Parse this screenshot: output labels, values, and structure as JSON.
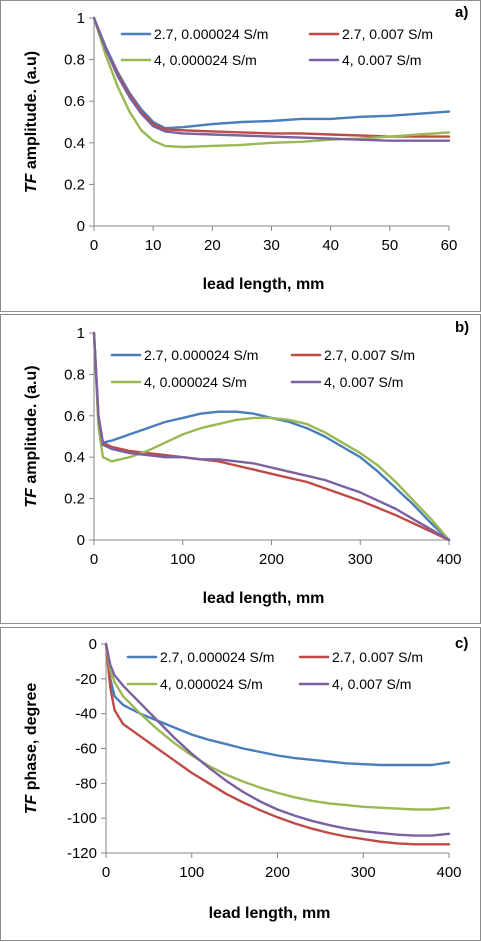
{
  "chart_data": [
    {
      "type": "line",
      "panel_label": "a)",
      "xlabel": "lead length, mm",
      "ylabel_italic": "TF",
      "ylabel_rest": " amplitude. (a.u)",
      "xlim": [
        0,
        60
      ],
      "ylim": [
        0,
        1
      ],
      "xticks": [
        0,
        10,
        20,
        30,
        40,
        50,
        60
      ],
      "yticks": [
        0,
        0.2,
        0.4,
        0.6,
        0.8,
        1
      ],
      "ytick_labels": [
        "0",
        "0.2",
        "0.4",
        "0.6",
        "0.8",
        "1"
      ],
      "legend_columns": 2,
      "legend_position": "top-right",
      "series": [
        {
          "name": "2.7, 0.000024 S/m",
          "color": "#4a7ebb",
          "x": [
            0,
            2,
            4,
            6,
            8,
            10,
            12,
            15,
            20,
            25,
            30,
            35,
            40,
            45,
            50,
            55,
            60
          ],
          "y": [
            1,
            0.86,
            0.74,
            0.64,
            0.56,
            0.5,
            0.47,
            0.475,
            0.49,
            0.5,
            0.505,
            0.515,
            0.515,
            0.525,
            0.53,
            0.54,
            0.55
          ]
        },
        {
          "name": "2.7, 0.007 S/m",
          "color": "#be4b48",
          "x": [
            0,
            2,
            4,
            6,
            8,
            10,
            12,
            15,
            20,
            25,
            30,
            35,
            40,
            45,
            50,
            55,
            60
          ],
          "y": [
            1,
            0.85,
            0.73,
            0.63,
            0.55,
            0.49,
            0.465,
            0.46,
            0.455,
            0.45,
            0.445,
            0.445,
            0.44,
            0.435,
            0.43,
            0.43,
            0.43
          ]
        },
        {
          "name": "4, 0.000024 S/m",
          "color": "#98b954",
          "x": [
            0,
            2,
            4,
            6,
            8,
            10,
            12,
            15,
            20,
            25,
            30,
            35,
            40,
            45,
            50,
            55,
            60
          ],
          "y": [
            1,
            0.82,
            0.67,
            0.55,
            0.46,
            0.41,
            0.385,
            0.38,
            0.385,
            0.39,
            0.4,
            0.405,
            0.415,
            0.42,
            0.43,
            0.44,
            0.45
          ]
        },
        {
          "name": "4, 0.007 S/m",
          "color": "#7d60a0",
          "x": [
            0,
            2,
            4,
            6,
            8,
            10,
            12,
            15,
            20,
            25,
            30,
            35,
            40,
            45,
            50,
            55,
            60
          ],
          "y": [
            1,
            0.85,
            0.72,
            0.62,
            0.54,
            0.48,
            0.455,
            0.445,
            0.44,
            0.435,
            0.43,
            0.425,
            0.42,
            0.415,
            0.41,
            0.41,
            0.41
          ]
        }
      ]
    },
    {
      "type": "line",
      "panel_label": "b)",
      "xlabel": "lead length, mm",
      "ylabel_italic": "TF",
      "ylabel_rest": " amplitude. (a.u)",
      "xlim": [
        0,
        400
      ],
      "ylim": [
        0,
        1
      ],
      "xticks": [
        0,
        100,
        200,
        300,
        400
      ],
      "yticks": [
        0,
        0.2,
        0.4,
        0.6,
        0.8,
        1
      ],
      "ytick_labels": [
        "0",
        "0.2",
        "0.4",
        "0.6",
        "0.8",
        "1"
      ],
      "legend_columns": 2,
      "legend_position": "top-right",
      "series": [
        {
          "name": "2.7, 0.000024 S/m",
          "color": "#4a7ebb",
          "x": [
            0,
            5,
            10,
            20,
            40,
            60,
            80,
            100,
            120,
            140,
            160,
            180,
            200,
            220,
            240,
            260,
            280,
            300,
            320,
            340,
            360,
            380,
            400
          ],
          "y": [
            1,
            0.6,
            0.47,
            0.48,
            0.51,
            0.54,
            0.57,
            0.59,
            0.61,
            0.62,
            0.62,
            0.61,
            0.59,
            0.57,
            0.54,
            0.5,
            0.45,
            0.4,
            0.33,
            0.25,
            0.17,
            0.08,
            0.0
          ]
        },
        {
          "name": "2.7, 0.007 S/m",
          "color": "#be4b48",
          "x": [
            0,
            5,
            10,
            20,
            40,
            60,
            80,
            100,
            120,
            140,
            160,
            180,
            200,
            220,
            240,
            260,
            280,
            300,
            320,
            340,
            360,
            380,
            400
          ],
          "y": [
            1,
            0.6,
            0.47,
            0.45,
            0.43,
            0.42,
            0.41,
            0.4,
            0.39,
            0.38,
            0.36,
            0.34,
            0.32,
            0.3,
            0.28,
            0.25,
            0.22,
            0.19,
            0.155,
            0.12,
            0.08,
            0.04,
            0.0
          ]
        },
        {
          "name": "4, 0.000024 S/m",
          "color": "#98b954",
          "x": [
            0,
            5,
            10,
            20,
            40,
            60,
            80,
            100,
            120,
            140,
            160,
            180,
            200,
            220,
            240,
            260,
            280,
            300,
            320,
            340,
            360,
            380,
            400
          ],
          "y": [
            1,
            0.55,
            0.4,
            0.38,
            0.4,
            0.43,
            0.47,
            0.51,
            0.54,
            0.56,
            0.58,
            0.59,
            0.59,
            0.58,
            0.56,
            0.52,
            0.47,
            0.42,
            0.36,
            0.28,
            0.19,
            0.1,
            0.0
          ]
        },
        {
          "name": "4, 0.007 S/m",
          "color": "#7d60a0",
          "x": [
            0,
            5,
            10,
            20,
            40,
            60,
            80,
            100,
            120,
            140,
            160,
            180,
            200,
            220,
            240,
            260,
            280,
            300,
            320,
            340,
            360,
            380,
            400
          ],
          "y": [
            1,
            0.6,
            0.46,
            0.44,
            0.42,
            0.41,
            0.4,
            0.4,
            0.39,
            0.39,
            0.38,
            0.37,
            0.35,
            0.33,
            0.31,
            0.29,
            0.26,
            0.23,
            0.19,
            0.15,
            0.1,
            0.05,
            0.0
          ]
        }
      ]
    },
    {
      "type": "line",
      "panel_label": "c)",
      "xlabel": "lead length, mm",
      "ylabel_italic": "TF",
      "ylabel_rest": " phase, degree",
      "xlim": [
        0,
        400
      ],
      "ylim": [
        -120,
        0
      ],
      "xticks": [
        0,
        100,
        200,
        300,
        400
      ],
      "yticks": [
        -120,
        -100,
        -80,
        -60,
        -40,
        -20,
        0
      ],
      "ytick_labels": [
        "-120",
        "-100",
        "-80",
        "-60",
        "-40",
        "-20",
        "0"
      ],
      "legend_columns": 2,
      "legend_position": "top-right",
      "series": [
        {
          "name": "2.7, 0.000024 S/m",
          "color": "#4a7ebb",
          "x": [
            0,
            5,
            10,
            20,
            40,
            60,
            80,
            100,
            120,
            140,
            160,
            180,
            200,
            220,
            240,
            260,
            280,
            300,
            320,
            340,
            360,
            380,
            400
          ],
          "y": [
            0,
            -20,
            -30,
            -35,
            -40,
            -44,
            -48,
            -52,
            -55,
            -57.5,
            -60,
            -62,
            -64,
            -65.5,
            -66.5,
            -67.5,
            -68.5,
            -69,
            -69.5,
            -69.5,
            -69.5,
            -69.5,
            -68
          ]
        },
        {
          "name": "2.7, 0.007 S/m",
          "color": "#be4b48",
          "x": [
            0,
            5,
            10,
            20,
            40,
            60,
            80,
            100,
            120,
            140,
            160,
            180,
            200,
            220,
            240,
            260,
            280,
            300,
            320,
            340,
            360,
            380,
            400
          ],
          "y": [
            0,
            -25,
            -38,
            -46,
            -53,
            -60,
            -67,
            -74,
            -80,
            -86,
            -91,
            -95.5,
            -99.5,
            -103,
            -106,
            -108.5,
            -110.5,
            -112,
            -113.5,
            -114.5,
            -115,
            -115,
            -115
          ]
        },
        {
          "name": "4, 0.000024 S/m",
          "color": "#98b954",
          "x": [
            0,
            5,
            10,
            20,
            40,
            60,
            80,
            100,
            120,
            140,
            160,
            180,
            200,
            220,
            240,
            260,
            280,
            300,
            320,
            340,
            360,
            380,
            400
          ],
          "y": [
            0,
            -15,
            -22,
            -30,
            -40,
            -49,
            -57,
            -64,
            -70,
            -75,
            -79,
            -82.5,
            -85.5,
            -88,
            -90,
            -91.5,
            -92.5,
            -93.5,
            -94,
            -94.5,
            -95,
            -95,
            -94
          ]
        },
        {
          "name": "4, 0.007 S/m",
          "color": "#7d60a0",
          "x": [
            0,
            5,
            10,
            20,
            40,
            60,
            80,
            100,
            120,
            140,
            160,
            180,
            200,
            220,
            240,
            260,
            280,
            300,
            320,
            340,
            360,
            380,
            400
          ],
          "y": [
            0,
            -12,
            -18,
            -24,
            -34,
            -44,
            -54,
            -63,
            -71,
            -78.5,
            -85,
            -90.5,
            -95,
            -98.5,
            -101.5,
            -104,
            -106,
            -107.5,
            -108.5,
            -109.5,
            -110,
            -110,
            -109
          ]
        }
      ]
    }
  ]
}
